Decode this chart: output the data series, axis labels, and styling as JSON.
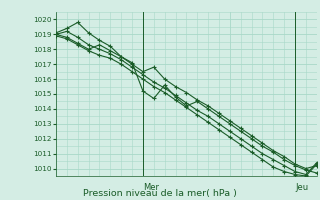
{
  "background_color": "#d4ede4",
  "grid_color": "#a8d8c8",
  "line_color": "#1a5c28",
  "title": "Pression niveau de la mer( hPa )",
  "xlabel_mer": "Mer",
  "xlabel_jeu": "Jeu",
  "ylim": [
    1009.5,
    1020.5
  ],
  "yticks": [
    1010,
    1011,
    1012,
    1013,
    1014,
    1015,
    1016,
    1017,
    1018,
    1019,
    1020
  ],
  "xlim": [
    0,
    72
  ],
  "mer_x": 24,
  "jeu_x": 66,
  "line1_x": [
    0,
    3,
    6,
    9,
    12,
    15,
    18,
    21,
    24,
    27,
    30,
    33,
    36,
    39,
    42,
    45,
    48,
    51,
    54,
    57,
    60,
    63,
    66,
    69,
    72
  ],
  "line1_y": [
    1019.1,
    1019.4,
    1019.8,
    1019.1,
    1018.6,
    1018.2,
    1017.5,
    1017.0,
    1016.5,
    1016.8,
    1016.0,
    1015.5,
    1015.1,
    1014.6,
    1014.2,
    1013.7,
    1013.2,
    1012.7,
    1012.2,
    1011.7,
    1011.2,
    1010.8,
    1010.3,
    1010.0,
    1010.2
  ],
  "line2_x": [
    0,
    3,
    6,
    9,
    12,
    15,
    18,
    21,
    24,
    27,
    30,
    33,
    36,
    39,
    42,
    45,
    48,
    51,
    54,
    57,
    60,
    63,
    66,
    69,
    72
  ],
  "line2_y": [
    1019.0,
    1019.2,
    1018.8,
    1018.3,
    1018.0,
    1017.7,
    1017.3,
    1016.8,
    1016.3,
    1015.8,
    1015.4,
    1014.9,
    1014.4,
    1013.9,
    1013.5,
    1013.0,
    1012.5,
    1012.0,
    1011.5,
    1011.0,
    1010.6,
    1010.2,
    1009.8,
    1009.6,
    1010.4
  ],
  "line3_x": [
    0,
    3,
    6,
    9,
    12,
    15,
    18,
    21,
    24,
    27,
    30,
    33,
    36,
    39,
    42,
    45,
    48,
    51,
    54,
    57,
    60,
    63,
    66,
    69,
    72
  ],
  "line3_y": [
    1019.0,
    1018.8,
    1018.4,
    1018.0,
    1018.3,
    1017.9,
    1017.5,
    1017.1,
    1015.2,
    1014.7,
    1015.6,
    1014.8,
    1014.2,
    1014.5,
    1014.0,
    1013.5,
    1013.0,
    1012.5,
    1012.0,
    1011.5,
    1011.1,
    1010.6,
    1010.2,
    1009.9,
    1009.7
  ],
  "line4_x": [
    0,
    3,
    6,
    9,
    12,
    15,
    18,
    21,
    24,
    27,
    30,
    33,
    36,
    39,
    42,
    45,
    48,
    51,
    54,
    57,
    60,
    63,
    66,
    69,
    72
  ],
  "line4_y": [
    1018.9,
    1018.7,
    1018.3,
    1017.9,
    1017.6,
    1017.4,
    1017.0,
    1016.5,
    1016.0,
    1015.5,
    1015.1,
    1014.6,
    1014.1,
    1013.6,
    1013.1,
    1012.6,
    1012.1,
    1011.6,
    1011.1,
    1010.6,
    1010.1,
    1009.8,
    1009.6,
    1009.5,
    1010.3
  ]
}
